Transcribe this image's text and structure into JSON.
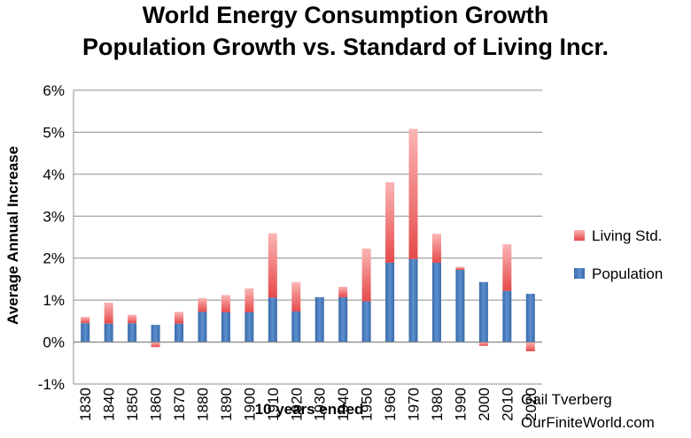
{
  "chart_data": {
    "type": "bar",
    "stacked": true,
    "title_lines": [
      "World Energy Consumption Growth",
      "Population Growth vs. Standard of Living Incr."
    ],
    "xlabel": "10 years ended",
    "ylabel": "Average Annual Increase",
    "ylim": [
      -0.01,
      0.06
    ],
    "y_ticks": [
      -0.01,
      0,
      0.01,
      0.02,
      0.03,
      0.04,
      0.05,
      0.06
    ],
    "y_tick_labels": [
      "-1%",
      "0%",
      "1%",
      "2%",
      "3%",
      "4%",
      "5%",
      "6%"
    ],
    "grid": true,
    "legend_position": "right",
    "categories": [
      "1830",
      "1840",
      "1850",
      "1860",
      "1870",
      "1880",
      "1890",
      "1900",
      "1910",
      "1920",
      "1930",
      "1940",
      "1950",
      "1960",
      "1970",
      "1980",
      "1990",
      "2000",
      "2010",
      "2020"
    ],
    "series": [
      {
        "name": "Population",
        "color": "#4f81bd",
        "values": [
          0.0045,
          0.0044,
          0.0045,
          0.0041,
          0.0044,
          0.0072,
          0.0071,
          0.0071,
          0.0106,
          0.0073,
          0.0107,
          0.0107,
          0.0097,
          0.0189,
          0.0198,
          0.0189,
          0.0172,
          0.0143,
          0.0122,
          0.0115
        ]
      },
      {
        "name": "Living Std.",
        "color": "#f2787a",
        "values": [
          0.0015,
          0.005,
          0.002,
          -0.0012,
          0.0028,
          0.0033,
          0.0041,
          0.0057,
          0.0153,
          0.007,
          0.0,
          0.0025,
          0.0126,
          0.0192,
          0.031,
          0.0069,
          0.0007,
          -0.0009,
          0.0111,
          -0.0022
        ]
      }
    ],
    "legend": [
      "Living Std.",
      "Population"
    ],
    "credit_lines": [
      "Gail Tverberg",
      "OurFiniteWorld.com"
    ]
  }
}
